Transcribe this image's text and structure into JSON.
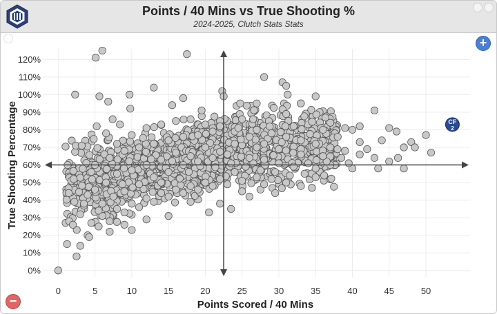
{
  "header": {
    "title": "Points / 40 Mins vs True Shooting %",
    "subtitle": "2024-2025, Clutch Stats Stats"
  },
  "controls": {
    "zoom_in_label": "+",
    "zoom_out_label": "−"
  },
  "colors": {
    "point_fill": "#c8c8c8",
    "point_stroke": "#555555",
    "highlight_fill": "#2a4a94",
    "logo": "#2b3f7a",
    "zoom_in": "#4a7fd4",
    "zoom_out": "#e06666"
  },
  "icons": [
    "logo-icon",
    "plus-icon",
    "minus-icon"
  ],
  "chart_data": {
    "type": "scatter",
    "title": "Points / 40 Mins vs True Shooting %",
    "subtitle": "2024-2025, Clutch Stats Stats",
    "xlabel": "Points Scored / 40 Mins",
    "ylabel": "True Shooting Percentage",
    "xlim": [
      -2,
      56
    ],
    "ylim": [
      -4,
      126
    ],
    "xticks": [
      0,
      5,
      10,
      15,
      20,
      25,
      30,
      35,
      40,
      45,
      50
    ],
    "yticks": [
      0,
      10,
      20,
      30,
      40,
      50,
      60,
      70,
      80,
      90,
      100,
      110,
      120
    ],
    "ytick_labels": [
      "0%",
      "10%",
      "20%",
      "30%",
      "40%",
      "50%",
      "60%",
      "70%",
      "80%",
      "90%",
      "100%",
      "110%",
      "120%"
    ],
    "grid": true,
    "reference_lines": {
      "x": 22.5,
      "y": 60
    },
    "series": [
      {
        "points": [
          [
            0,
            0
          ],
          [
            5.1,
            121
          ],
          [
            6,
            125
          ],
          [
            17.5,
            123
          ],
          [
            28,
            110
          ],
          [
            30.5,
            107
          ],
          [
            31,
            105
          ],
          [
            31.2,
            100
          ],
          [
            9.7,
            100
          ],
          [
            2.3,
            100
          ],
          [
            22.3,
            102
          ],
          [
            22.5,
            99
          ],
          [
            35,
            99
          ],
          [
            43,
            91
          ],
          [
            40,
            80
          ],
          [
            41,
            82
          ],
          [
            45,
            81
          ],
          [
            46,
            79
          ],
          [
            48,
            73
          ],
          [
            48.5,
            70
          ],
          [
            50,
            77
          ],
          [
            50.7,
            67
          ],
          [
            46.2,
            64
          ],
          [
            47,
            58
          ],
          [
            43.5,
            58
          ],
          [
            40,
            58
          ],
          [
            39.5,
            61
          ],
          [
            37,
            60
          ],
          [
            35,
            53
          ],
          [
            33,
            48
          ],
          [
            34.5,
            47
          ],
          [
            29.5,
            44
          ],
          [
            14,
            50
          ],
          [
            10,
            23
          ],
          [
            7,
            22
          ],
          [
            5.5,
            25
          ],
          [
            4,
            20
          ],
          [
            3,
            14
          ],
          [
            2.5,
            8
          ],
          [
            1.2,
            15
          ],
          [
            1.5,
            28
          ],
          [
            2.2,
            39
          ],
          [
            3,
            32
          ],
          [
            2,
            26
          ],
          [
            4.2,
            19
          ],
          [
            2.1,
            52
          ],
          [
            2.4,
            71
          ],
          [
            3.2,
            71
          ],
          [
            5.6,
            99
          ],
          [
            6.8,
            96
          ],
          [
            7.4,
            86
          ],
          [
            8.4,
            83
          ],
          [
            9.8,
            92
          ],
          [
            13,
            104
          ],
          [
            15.5,
            94
          ],
          [
            17,
            98
          ],
          [
            19.5,
            91
          ],
          [
            22,
            85
          ],
          [
            25,
            86
          ],
          [
            26.5,
            86
          ],
          [
            31,
            89
          ],
          [
            32,
            82
          ],
          [
            36,
            80
          ],
          [
            37,
            84
          ],
          [
            39,
            81
          ],
          [
            44,
            74
          ],
          [
            47,
            70
          ],
          [
            42,
            69
          ],
          [
            41,
            73
          ],
          [
            38,
            76
          ],
          [
            35.5,
            72
          ],
          [
            33,
            69
          ],
          [
            28.5,
            75
          ],
          [
            27,
            70
          ],
          [
            26,
            66
          ],
          [
            24,
            72
          ],
          [
            23,
            66
          ],
          [
            20,
            70
          ],
          [
            18,
            65
          ],
          [
            16,
            67
          ],
          [
            14,
            63
          ],
          [
            12,
            60
          ],
          [
            10,
            57
          ],
          [
            8,
            55
          ],
          [
            6.5,
            50
          ],
          [
            5,
            46
          ],
          [
            4,
            43
          ],
          [
            3.5,
            38
          ],
          [
            6,
            38
          ],
          [
            7.5,
            42
          ],
          [
            9,
            45
          ],
          [
            11,
            49
          ],
          [
            13,
            53
          ],
          [
            15,
            56
          ],
          [
            17,
            60
          ],
          [
            19,
            62
          ],
          [
            21,
            64
          ],
          [
            23.5,
            61
          ],
          [
            25.5,
            59
          ],
          [
            27.5,
            57
          ],
          [
            29.5,
            56
          ],
          [
            31.5,
            54
          ],
          [
            33.5,
            55
          ],
          [
            35,
            58
          ],
          [
            36.5,
            62
          ],
          [
            38.5,
            64
          ],
          [
            33,
            66
          ],
          [
            30,
            69
          ],
          [
            28,
            72
          ],
          [
            26,
            76
          ],
          [
            24,
            79
          ],
          [
            21,
            79
          ],
          [
            19,
            77
          ],
          [
            17,
            76
          ],
          [
            15,
            74
          ],
          [
            13,
            72
          ],
          [
            11,
            70
          ],
          [
            9,
            68
          ],
          [
            7,
            64
          ],
          [
            5,
            60
          ],
          [
            4.5,
            56
          ],
          [
            8,
            72
          ],
          [
            10,
            77
          ],
          [
            12,
            81
          ],
          [
            14,
            83
          ],
          [
            16,
            85
          ],
          [
            18,
            86
          ],
          [
            20,
            83
          ],
          [
            22,
            82
          ],
          [
            24.5,
            81
          ],
          [
            27,
            80
          ],
          [
            29,
            78
          ],
          [
            31,
            76
          ],
          [
            33,
            74
          ],
          [
            35,
            72
          ],
          [
            37,
            70
          ],
          [
            39,
            68
          ],
          [
            41,
            66
          ],
          [
            43,
            64
          ],
          [
            45,
            62
          ],
          [
            36,
            65
          ],
          [
            34,
            61
          ],
          [
            32,
            59
          ],
          [
            30,
            61
          ],
          [
            28,
            63
          ],
          [
            26,
            64
          ],
          [
            24,
            56
          ],
          [
            22,
            52
          ],
          [
            20,
            50
          ],
          [
            18,
            48
          ],
          [
            16,
            46
          ],
          [
            14,
            44
          ],
          [
            12,
            41
          ],
          [
            10,
            38
          ],
          [
            8,
            35
          ],
          [
            6,
            31
          ],
          [
            4.5,
            27
          ],
          [
            5.5,
            34
          ],
          [
            7,
            28
          ],
          [
            9,
            33
          ],
          [
            11,
            36
          ],
          [
            13,
            39
          ],
          [
            15,
            42
          ],
          [
            17,
            44
          ],
          [
            19,
            46
          ],
          [
            21,
            48
          ],
          [
            23,
            49
          ],
          [
            25,
            51
          ],
          [
            27,
            53
          ],
          [
            29,
            52
          ],
          [
            31,
            50
          ],
          [
            20.5,
            33
          ],
          [
            22,
            38
          ],
          [
            23.5,
            35
          ],
          [
            15,
            31
          ],
          [
            12,
            29
          ],
          [
            9,
            26
          ],
          [
            18,
            39
          ],
          [
            25,
            45
          ],
          [
            27.5,
            46
          ],
          [
            26,
            42
          ],
          [
            28,
            49
          ]
        ]
      }
    ],
    "highlight": {
      "label": "CF",
      "sublabel": "2",
      "x": 53.6,
      "y": 83
    }
  }
}
